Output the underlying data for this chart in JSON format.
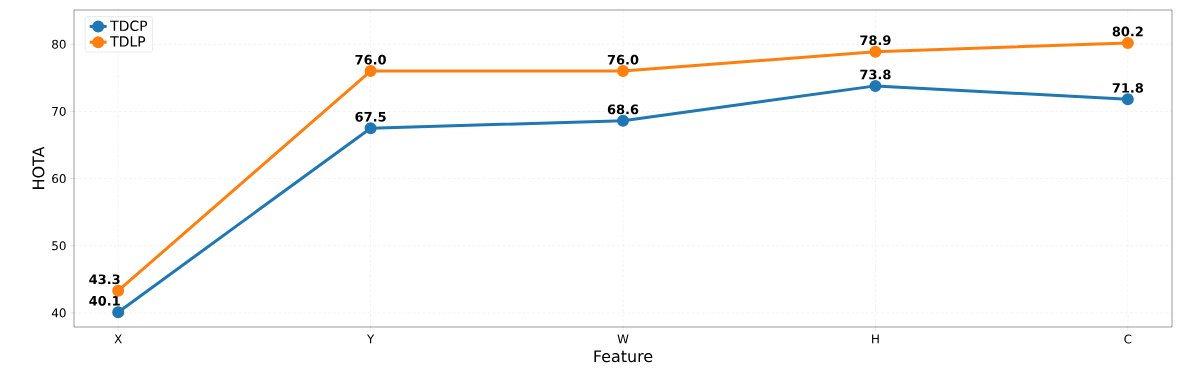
{
  "chart_data": {
    "type": "line",
    "xlabel": "Feature",
    "ylabel": "HOTA",
    "categories": [
      "X",
      "Y",
      "W",
      "H",
      "C"
    ],
    "series": [
      {
        "name": "TDCP",
        "color": "#1f77b4",
        "values": [
          40.1,
          67.5,
          68.6,
          73.8,
          71.8
        ],
        "value_labels": [
          "40.1",
          "67.5",
          "68.6",
          "73.8",
          "71.8"
        ]
      },
      {
        "name": "TDLP",
        "color": "#ff7f0e",
        "values": [
          43.3,
          76.0,
          76.0,
          78.9,
          80.2
        ],
        "value_labels": [
          "43.3",
          "76.0",
          "76.0",
          "78.9",
          "80.2"
        ]
      }
    ],
    "ylim": [
      37.9,
      85.1
    ],
    "yticks": [
      40,
      50,
      60,
      70,
      80
    ],
    "grid": true,
    "legend": "top left",
    "marker": "circle",
    "line_style": "solid"
  }
}
